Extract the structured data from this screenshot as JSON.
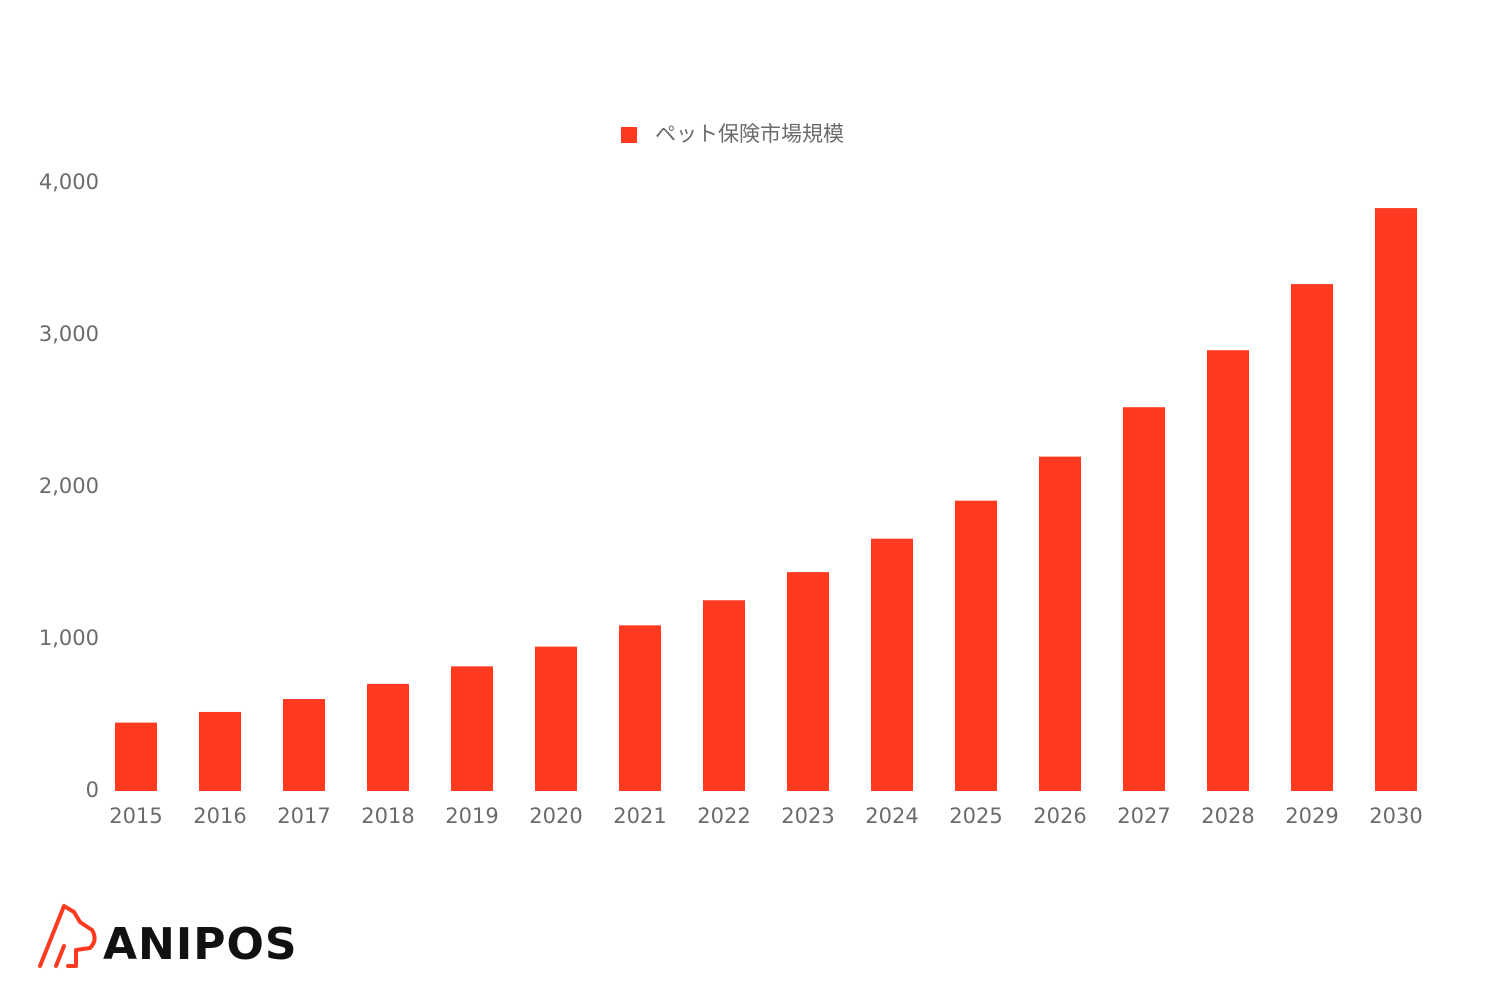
{
  "chart_data": {
    "type": "bar",
    "legend": "ペット保険市場規模",
    "categories": [
      "2015",
      "2016",
      "2017",
      "2018",
      "2019",
      "2020",
      "2021",
      "2022",
      "2023",
      "2024",
      "2025",
      "2026",
      "2027",
      "2028",
      "2029",
      "2030"
    ],
    "values": [
      450,
      520,
      605,
      705,
      820,
      950,
      1090,
      1255,
      1440,
      1660,
      1910,
      2200,
      2525,
      2900,
      3335,
      3835
    ],
    "color": "#ff3a20",
    "ylim": [
      0,
      4000
    ],
    "yticks": [
      0,
      {
        "value": 1000,
        "label": "1,000"
      },
      {
        "value": 2000,
        "label": "2,000"
      },
      {
        "value": 3000,
        "label": "3,000"
      },
      {
        "value": 4000,
        "label": "4,000"
      }
    ],
    "grid": false,
    "legend_position": "top"
  },
  "logo": {
    "text": "ANIPOS"
  }
}
